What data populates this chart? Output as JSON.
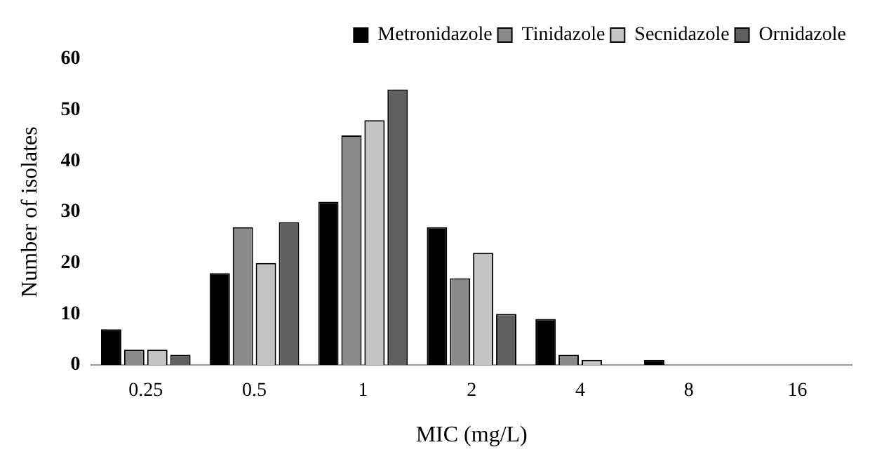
{
  "chart_data": {
    "type": "bar",
    "xlabel": "MIC (mg/L)",
    "ylabel": "Number of isolates",
    "categories": [
      "0.25",
      "0.5",
      "1",
      "2",
      "4",
      "8",
      "16"
    ],
    "series": [
      {
        "name": "Metronidazole",
        "color": "#000000",
        "values": [
          7,
          18,
          32,
          27,
          9,
          1,
          0
        ]
      },
      {
        "name": "Tinidazole",
        "color": "#8a8a8a",
        "values": [
          3,
          27,
          45,
          17,
          2,
          0,
          0
        ]
      },
      {
        "name": "Secnidazole",
        "color": "#c4c4c4",
        "values": [
          3,
          20,
          48,
          22,
          1,
          0,
          0
        ]
      },
      {
        "name": "Ornidazole",
        "color": "#606060",
        "values": [
          2,
          28,
          54,
          10,
          0,
          0,
          0
        ]
      }
    ],
    "ylim": [
      0,
      60
    ],
    "yticks": [
      0,
      10,
      20,
      30,
      40,
      50,
      60
    ],
    "grid": false,
    "legend": "top right"
  }
}
